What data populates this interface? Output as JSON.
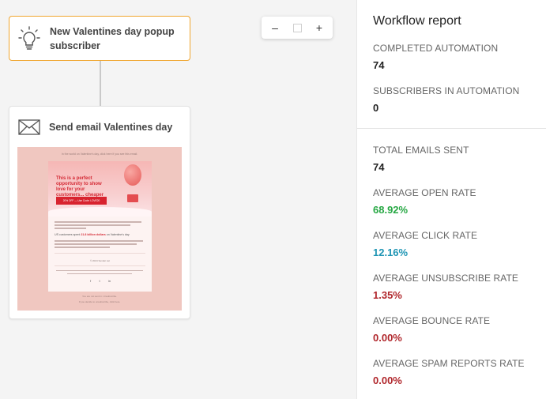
{
  "canvas": {
    "trigger": {
      "title": "New Valentines day popup subscriber",
      "icon": "lightbulb-icon"
    },
    "email_step": {
      "title": "Send email Valentines day",
      "icon": "envelope-icon",
      "preview": {
        "top_text": "In the world on Valentine's day, click here if you see this email.",
        "headline": "This is a perfect opportunity to show love for your customers... cheaper",
        "cta": "20% OFF — Use Code: LOVE20",
        "stat_prefix": "US customers spent",
        "stat_highlight": "21.8 billion dollars",
        "stat_suffix": "on Valentine's day",
        "copyright": "© 2024 Sender.net",
        "social": [
          "f",
          "t",
          "in"
        ],
        "footer_1": "You are not sent in. Unsubscribe.",
        "footer_2": "If you decide to unsubscribe, click here."
      }
    }
  },
  "zoom": {
    "minus": "–",
    "plus": "+"
  },
  "report": {
    "title": "Workflow report",
    "stats_top": [
      {
        "label": "COMPLETED AUTOMATION",
        "value": "74",
        "color": "#222222"
      },
      {
        "label": "SUBSCRIBERS IN AUTOMATION",
        "value": "0",
        "color": "#222222"
      }
    ],
    "stats_bottom": [
      {
        "label": "TOTAL EMAILS SENT",
        "value": "74",
        "color": "#222222"
      },
      {
        "label": "AVERAGE OPEN RATE",
        "value": "68.92%",
        "color": "#27a844"
      },
      {
        "label": "AVERAGE CLICK RATE",
        "value": "12.16%",
        "color": "#1e95b4"
      },
      {
        "label": "AVERAGE UNSUBSCRIBE RATE",
        "value": "1.35%",
        "color": "#b0262b"
      },
      {
        "label": "AVERAGE BOUNCE RATE",
        "value": "0.00%",
        "color": "#b0262b"
      },
      {
        "label": "AVERAGE SPAM REPORTS RATE",
        "value": "0.00%",
        "color": "#b0262b"
      }
    ]
  }
}
